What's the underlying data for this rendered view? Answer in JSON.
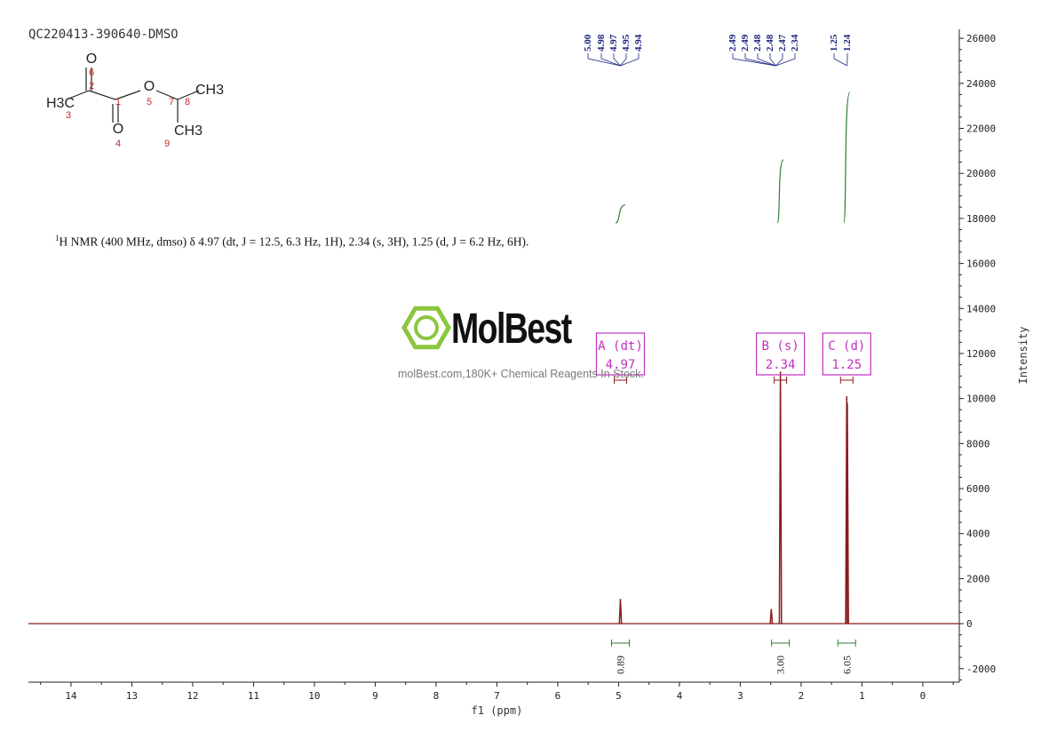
{
  "header": {
    "sample_id": "QC220413-390640-DMSO"
  },
  "structure": {
    "atoms": [
      "O",
      "6",
      "2",
      "H3C",
      "3",
      "1",
      "O",
      "5",
      "7",
      "CH3",
      "8",
      "O",
      "4",
      "CH3",
      "9"
    ]
  },
  "nmr_text": {
    "sup": "1",
    "text": "H NMR (400 MHz, dmso) δ 4.97 (dt, J = 12.5, 6.3 Hz, 1H), 2.34 (s, 3H), 1.25 (d, J = 6.2 Hz, 6H)."
  },
  "watermark": {
    "brand": "MolBest",
    "tagline": "molBest.com,180K+ Chemical Reagents In Stock.",
    "color": "#8cc63f"
  },
  "chart_data": {
    "type": "line",
    "x_axis": {
      "label": "f1 (ppm)",
      "range": [
        14.7,
        -0.6
      ],
      "ticks": [
        14,
        13,
        12,
        11,
        10,
        9,
        8,
        7,
        6,
        5,
        4,
        3,
        2,
        1,
        0
      ],
      "tick_labels": [
        "14",
        "13",
        "12",
        "11",
        "10",
        "9",
        "8",
        "7",
        "6",
        "5",
        "4",
        "3",
        "2",
        "1",
        "0"
      ]
    },
    "y_axis": {
      "label": "Intensity",
      "range": [
        -2600,
        26400
      ],
      "ticks": [
        26000,
        24000,
        22000,
        20000,
        18000,
        16000,
        14000,
        12000,
        10000,
        8000,
        6000,
        4000,
        2000,
        0,
        -2000
      ],
      "tick_labels": [
        "26000",
        "24000",
        "22000",
        "20000",
        "18000",
        "16000",
        "14000",
        "12000",
        "10000",
        "8000",
        "6000",
        "4000",
        "2000",
        "0",
        "-2000"
      ]
    },
    "colors": {
      "spectrum": "#8b1a1a",
      "peak_labels": "#1a237e",
      "integral": "#2e7d32",
      "multiplet_box": "#c030c0"
    },
    "peaks": [
      {
        "ppm": 4.97,
        "height": 1100
      },
      {
        "ppm": 2.49,
        "height": 650
      },
      {
        "ppm": 2.34,
        "height": 11200
      },
      {
        "ppm": 1.25,
        "height": 10100
      },
      {
        "ppm": 1.24,
        "height": 9800
      }
    ],
    "peak_labels": [
      {
        "group": "A",
        "ppm": [
          "5.00",
          "4.98",
          "4.97",
          "4.95",
          "4.94"
        ],
        "span": [
          5.0,
          4.94
        ]
      },
      {
        "group": "B",
        "ppm": [
          "2.49",
          "2.49",
          "2.48",
          "2.48",
          "2.47",
          "2.34"
        ],
        "span": [
          2.49,
          2.34
        ]
      },
      {
        "group": "C",
        "ppm": [
          "1.25",
          "1.24"
        ],
        "span": [
          1.25,
          1.24
        ]
      }
    ],
    "multiplets": [
      {
        "label": "A (dt)",
        "value": "4.97",
        "ppm": 4.97
      },
      {
        "label": "B (s)",
        "value": "2.34",
        "ppm": 2.34
      },
      {
        "label": "C (d)",
        "value": "1.25",
        "ppm": 1.25
      }
    ],
    "integrals": [
      {
        "ppm": 4.97,
        "from": 5.05,
        "to": 4.89,
        "value": "0.89",
        "y_start": 17800,
        "y_end": 18600
      },
      {
        "ppm": 2.34,
        "from": 2.39,
        "to": 2.29,
        "value": "3.00",
        "y_start": 17800,
        "y_end": 20600
      },
      {
        "ppm": 1.25,
        "from": 1.3,
        "to": 1.2,
        "value": "6.05",
        "y_start": 17800,
        "y_end": 23600
      }
    ]
  }
}
